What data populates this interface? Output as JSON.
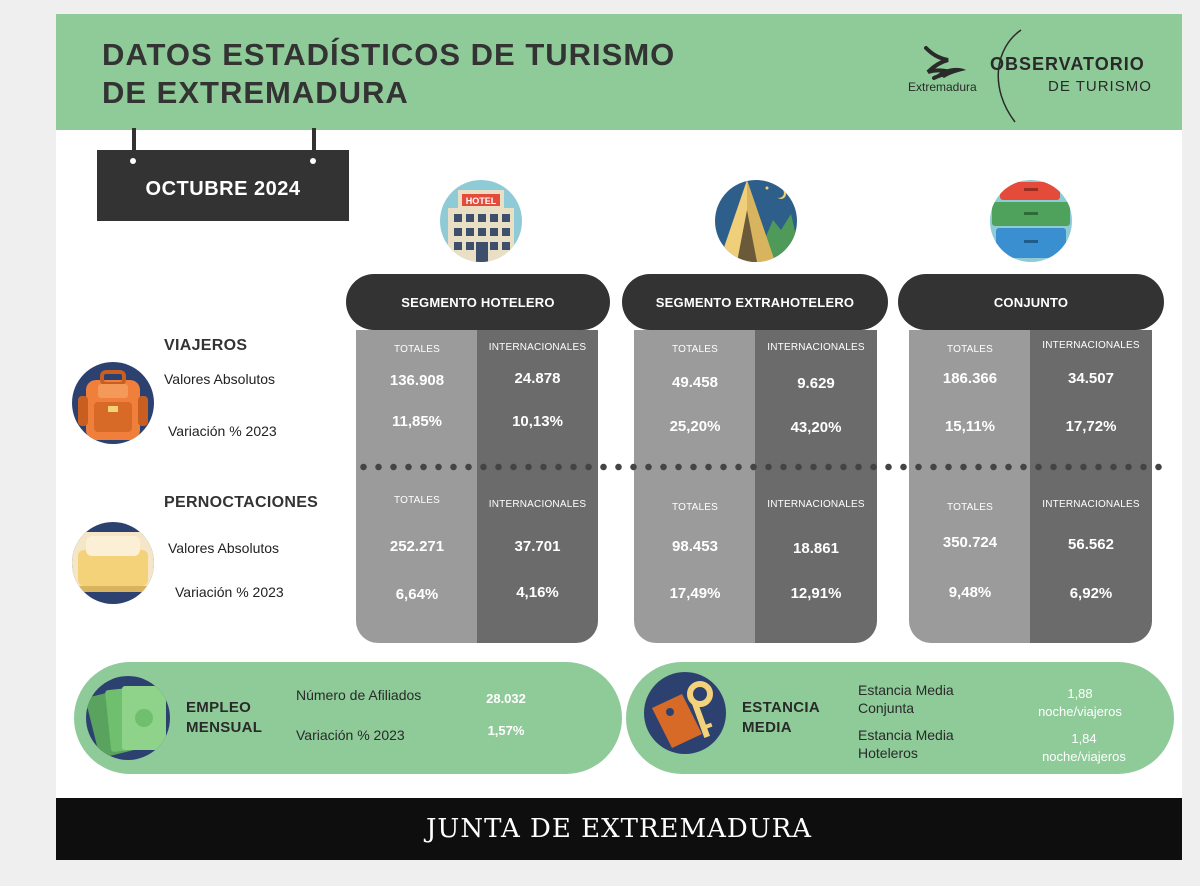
{
  "header": {
    "title_line1": "DATOS ESTADÍSTICOS DE TURISMO",
    "title_line2": "DE EXTREMADURA",
    "logo_extremadura": "Extremadura",
    "observatorio_line1": "OBSERVATORIO",
    "observatorio_line2": "DE TURISMO"
  },
  "period": "OCTUBRE 2024",
  "colors": {
    "green": "#8ecb98",
    "dark": "#333333",
    "panel_light": "#9b9b9b",
    "panel_dark": "#6b6b6b"
  },
  "icons": [
    "hotel-icon",
    "tent-icon",
    "suitcases-icon",
    "backpack-icon",
    "bed-icon",
    "money-icon",
    "key-tag-icon"
  ],
  "rows": {
    "viajeros": {
      "title": "VIAJEROS",
      "abs_label": "Valores Absolutos",
      "var_label": "Variación % 2023"
    },
    "pernoctaciones": {
      "title": "PERNOCTACIONES",
      "abs_label": "Valores Absolutos",
      "var_label": "Variación % 2023"
    }
  },
  "segments": [
    {
      "title": "SEGMENTO HOTELERO",
      "col_totales": "TOTALES",
      "col_internacionales": "INTERNACIONALES",
      "viajeros": {
        "totales_abs": "136.908",
        "intl_abs": "24.878",
        "totales_var": "11,85%",
        "intl_var": "10,13%"
      },
      "pernoctaciones": {
        "totales_abs": "252.271",
        "intl_abs": "37.701",
        "totales_var": "6,64%",
        "intl_var": "4,16%"
      }
    },
    {
      "title": "SEGMENTO EXTRAHOTELERO",
      "col_totales": "TOTALES",
      "col_internacionales": "INTERNACIONALES",
      "viajeros": {
        "totales_abs": "49.458",
        "intl_abs": "9.629",
        "totales_var": "25,20%",
        "intl_var": "43,20%"
      },
      "pernoctaciones": {
        "totales_abs": "98.453",
        "intl_abs": "18.861",
        "totales_var": "17,49%",
        "intl_var": "12,91%"
      }
    },
    {
      "title": "CONJUNTO",
      "col_totales": "TOTALES",
      "col_internacionales": "INTERNACIONALES",
      "viajeros": {
        "totales_abs": "186.366",
        "intl_abs": "34.507",
        "totales_var": "15,11%",
        "intl_var": "17,72%"
      },
      "pernoctaciones": {
        "totales_abs": "350.724",
        "intl_abs": "56.562",
        "totales_var": "9,48%",
        "intl_var": "6,92%"
      }
    }
  ],
  "empleo": {
    "title_line1": "EMPLEO",
    "title_line2": "MENSUAL",
    "afiliados_label": "Número de Afiliados",
    "afiliados_value": "28.032",
    "variacion_label": "Variación % 2023",
    "variacion_value": "1,57%"
  },
  "estancia": {
    "title_line1": "ESTANCIA",
    "title_line2": "MEDIA",
    "conjunta_label_1": "Estancia Media",
    "conjunta_label_2": "Conjunta",
    "conjunta_value_1": "1,88",
    "conjunta_value_2": "noche/viajeros",
    "hoteleros_label_1": "Estancia Media",
    "hoteleros_label_2": "Hoteleros",
    "hoteleros_value_1": "1,84",
    "hoteleros_value_2": "noche/viajeros"
  },
  "footer": "JUNTA DE EXTREMADURA"
}
